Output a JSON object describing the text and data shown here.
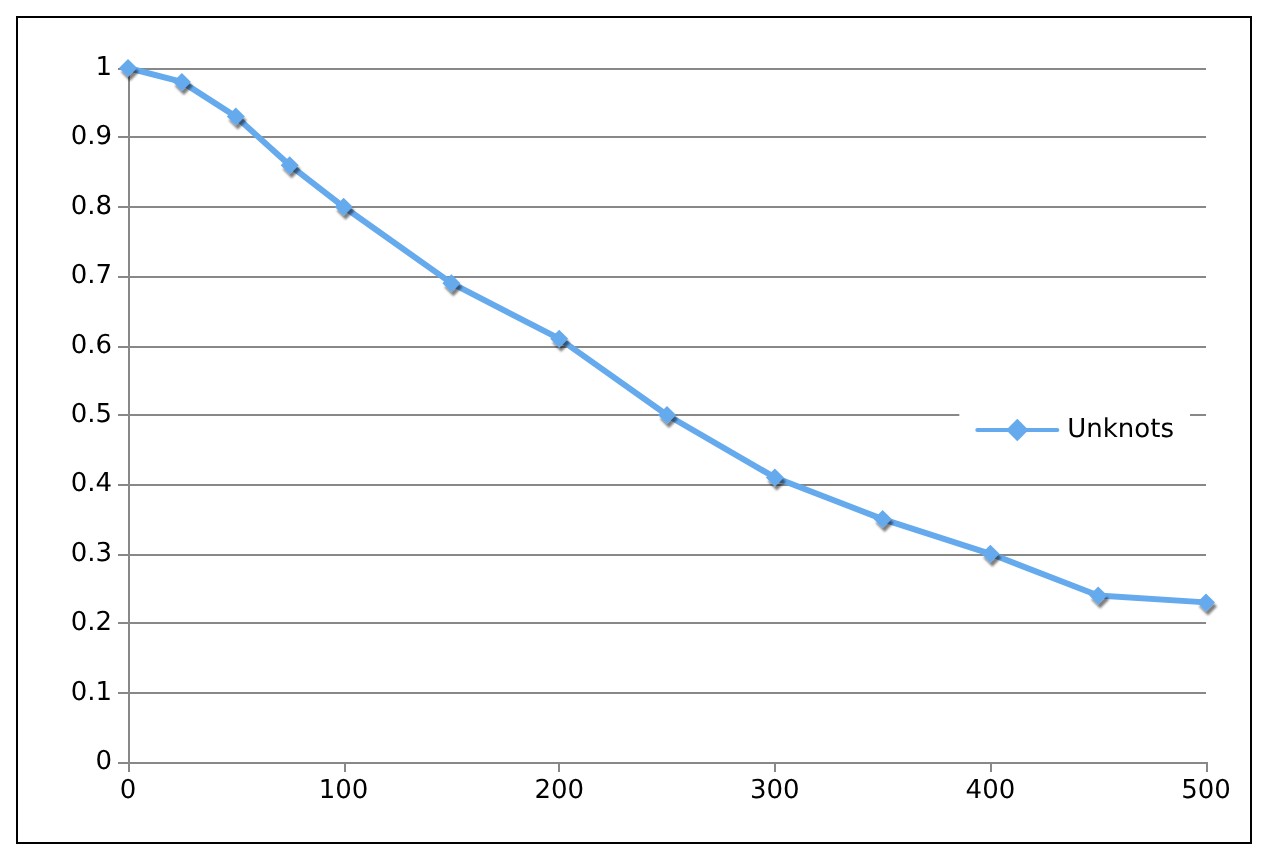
{
  "chart_data": {
    "type": "line",
    "x": [
      0,
      25,
      50,
      75,
      100,
      150,
      200,
      250,
      300,
      350,
      400,
      450,
      500
    ],
    "series": [
      {
        "name": "Unknots",
        "color": "#66aaee",
        "values": [
          1.0,
          0.98,
          0.93,
          0.86,
          0.8,
          0.69,
          0.61,
          0.5,
          0.41,
          0.35,
          0.3,
          0.24,
          0.23
        ]
      }
    ],
    "xlim": [
      0,
      500
    ],
    "xticks": [
      0,
      100,
      200,
      300,
      400,
      500
    ],
    "ylim": [
      0,
      1
    ],
    "yticks": [
      0,
      0.1,
      0.2,
      0.3,
      0.4,
      0.5,
      0.6,
      0.7,
      0.8,
      0.9,
      1
    ],
    "grid": "y",
    "legend": "right",
    "marker": "diamond",
    "line_style": "solid"
  }
}
